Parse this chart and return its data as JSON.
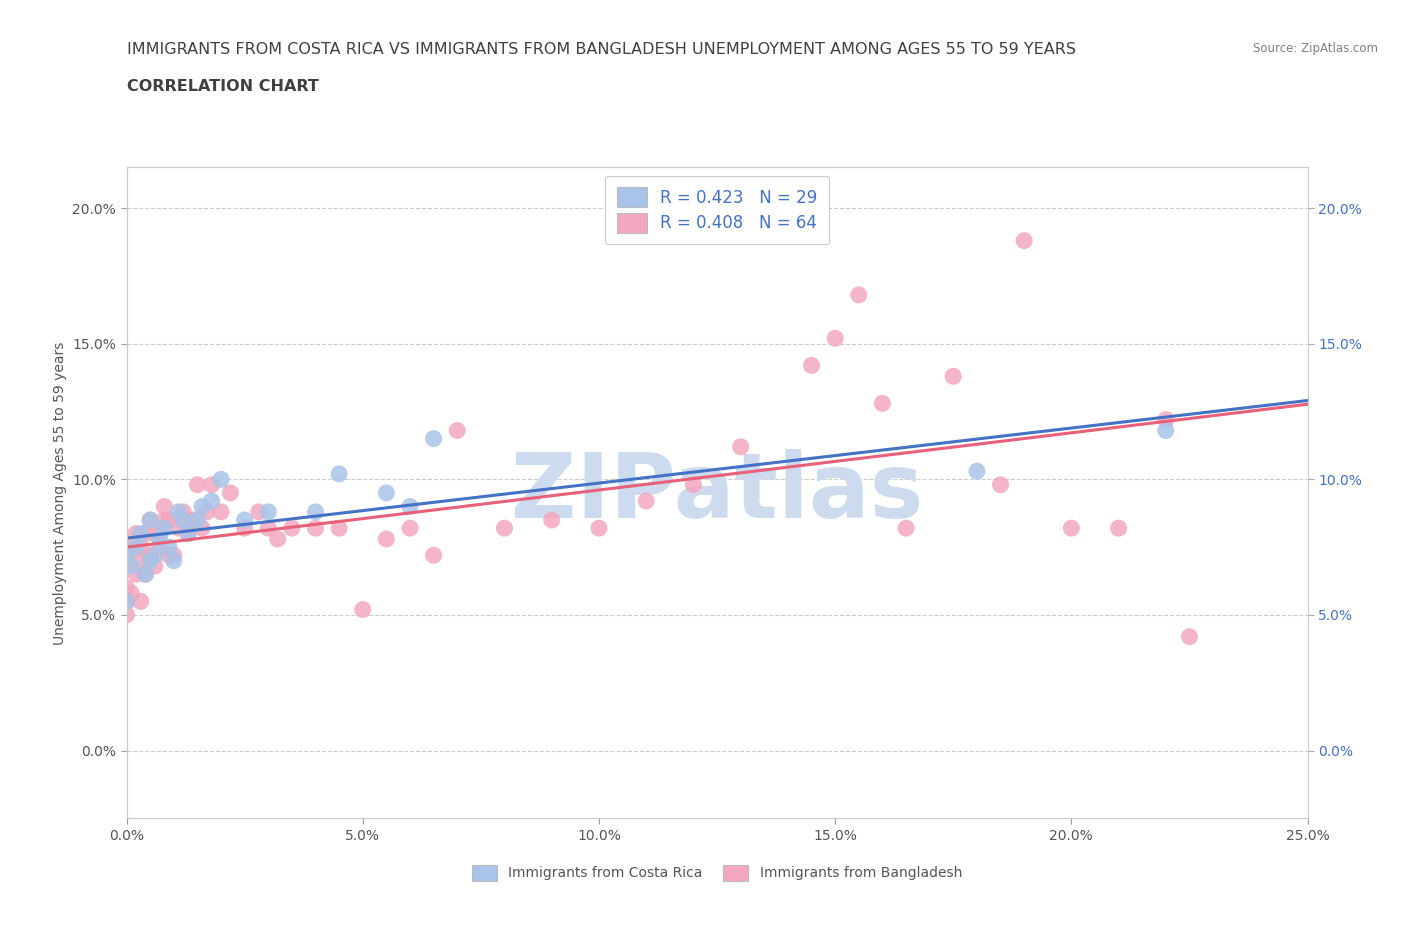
{
  "title_line1": "IMMIGRANTS FROM COSTA RICA VS IMMIGRANTS FROM BANGLADESH UNEMPLOYMENT AMONG AGES 55 TO 59 YEARS",
  "title_line2": "CORRELATION CHART",
  "source": "Source: ZipAtlas.com",
  "ylabel": "Unemployment Among Ages 55 to 59 years",
  "xlim": [
    0.0,
    0.25
  ],
  "ylim": [
    -0.025,
    0.215
  ],
  "xticks": [
    0.0,
    0.05,
    0.1,
    0.15,
    0.2,
    0.25
  ],
  "xtick_labels": [
    "0.0%",
    "5.0%",
    "10.0%",
    "15.0%",
    "20.0%",
    "25.0%"
  ],
  "yticks": [
    0.0,
    0.05,
    0.1,
    0.15,
    0.2
  ],
  "ytick_labels": [
    "0.0%",
    "5.0%",
    "10.0%",
    "15.0%",
    "20.0%"
  ],
  "legend_blue_label": "R = 0.423   N = 29",
  "legend_pink_label": "R = 0.408   N = 64",
  "blue_color": "#a8c4e8",
  "pink_color": "#f4a8c0",
  "blue_line_color": "#4472c4",
  "pink_line_color": "#e8607a",
  "source_color": "#808080",
  "grid_color": "#cccccc",
  "background_color": "#ffffff",
  "title_color": "#404040",
  "axis_label_color": "#555555",
  "tick_color_left": "#555555",
  "tick_color_right": "#4472c4",
  "watermark_color": "#ccdcee",
  "watermark_fontsize": 65,
  "title_fontsize": 11.5,
  "label_fontsize": 10,
  "tick_fontsize": 10,
  "legend_fontsize": 12,
  "costa_rica_x": [
    0.0,
    0.0,
    0.001,
    0.002,
    0.003,
    0.004,
    0.005,
    0.005,
    0.006,
    0.007,
    0.008,
    0.009,
    0.01,
    0.011,
    0.012,
    0.013,
    0.015,
    0.016,
    0.018,
    0.02,
    0.025,
    0.03,
    0.04,
    0.045,
    0.055,
    0.06,
    0.065,
    0.18,
    0.22
  ],
  "costa_rica_y": [
    0.055,
    0.072,
    0.068,
    0.075,
    0.08,
    0.065,
    0.07,
    0.085,
    0.072,
    0.078,
    0.082,
    0.075,
    0.07,
    0.088,
    0.085,
    0.08,
    0.085,
    0.09,
    0.092,
    0.1,
    0.085,
    0.088,
    0.088,
    0.102,
    0.095,
    0.09,
    0.115,
    0.103,
    0.118
  ],
  "bangladesh_x": [
    0.0,
    0.0,
    0.0,
    0.0,
    0.001,
    0.001,
    0.002,
    0.002,
    0.003,
    0.003,
    0.003,
    0.004,
    0.004,
    0.005,
    0.005,
    0.006,
    0.006,
    0.007,
    0.007,
    0.008,
    0.008,
    0.009,
    0.009,
    0.01,
    0.011,
    0.012,
    0.013,
    0.014,
    0.015,
    0.016,
    0.017,
    0.018,
    0.02,
    0.022,
    0.025,
    0.028,
    0.03,
    0.032,
    0.035,
    0.04,
    0.045,
    0.05,
    0.055,
    0.06,
    0.065,
    0.07,
    0.08,
    0.09,
    0.1,
    0.11,
    0.12,
    0.13,
    0.145,
    0.15,
    0.155,
    0.16,
    0.165,
    0.175,
    0.185,
    0.19,
    0.2,
    0.21,
    0.22,
    0.225
  ],
  "bangladesh_y": [
    0.05,
    0.055,
    0.06,
    0.07,
    0.058,
    0.075,
    0.065,
    0.08,
    0.055,
    0.07,
    0.075,
    0.08,
    0.065,
    0.072,
    0.085,
    0.068,
    0.08,
    0.075,
    0.08,
    0.085,
    0.09,
    0.072,
    0.085,
    0.072,
    0.082,
    0.088,
    0.08,
    0.085,
    0.098,
    0.082,
    0.088,
    0.098,
    0.088,
    0.095,
    0.082,
    0.088,
    0.082,
    0.078,
    0.082,
    0.082,
    0.082,
    0.052,
    0.078,
    0.082,
    0.072,
    0.118,
    0.082,
    0.085,
    0.082,
    0.092,
    0.098,
    0.112,
    0.142,
    0.152,
    0.168,
    0.128,
    0.082,
    0.138,
    0.098,
    0.188,
    0.082,
    0.082,
    0.122,
    0.042
  ]
}
